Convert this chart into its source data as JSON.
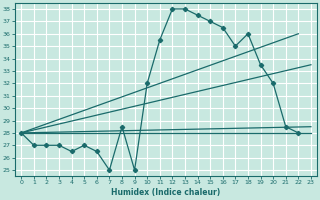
{
  "bg_color": "#c8e8e0",
  "grid_color": "#ffffff",
  "line_color": "#1a6b6b",
  "xlabel": "Humidex (Indice chaleur)",
  "xlim": [
    -0.5,
    23.5
  ],
  "ylim": [
    24.5,
    38.5
  ],
  "yticks": [
    25,
    26,
    27,
    28,
    29,
    30,
    31,
    32,
    33,
    34,
    35,
    36,
    37,
    38
  ],
  "xticks": [
    0,
    1,
    2,
    3,
    4,
    5,
    6,
    7,
    8,
    9,
    10,
    11,
    12,
    13,
    14,
    15,
    16,
    17,
    18,
    19,
    20,
    21,
    22,
    23
  ],
  "jagged_x": [
    0,
    1,
    2,
    3,
    4,
    5,
    6,
    7,
    8,
    9,
    10,
    11,
    12,
    13,
    14,
    15,
    16,
    17,
    18,
    19,
    20,
    21,
    22
  ],
  "jagged_y": [
    28,
    27,
    27,
    27,
    26.5,
    27,
    26.5,
    25,
    28.5,
    25,
    32,
    35.5,
    38,
    38,
    37.5,
    37,
    36.5,
    35,
    36,
    33.5,
    32,
    28.5,
    28
  ],
  "straight_lines": [
    {
      "x": [
        0,
        23
      ],
      "y": [
        28,
        28
      ]
    },
    {
      "x": [
        0,
        23
      ],
      "y": [
        28,
        28.5
      ]
    },
    {
      "x": [
        0,
        23
      ],
      "y": [
        28,
        33.5
      ]
    },
    {
      "x": [
        0,
        22
      ],
      "y": [
        28,
        36
      ]
    }
  ]
}
